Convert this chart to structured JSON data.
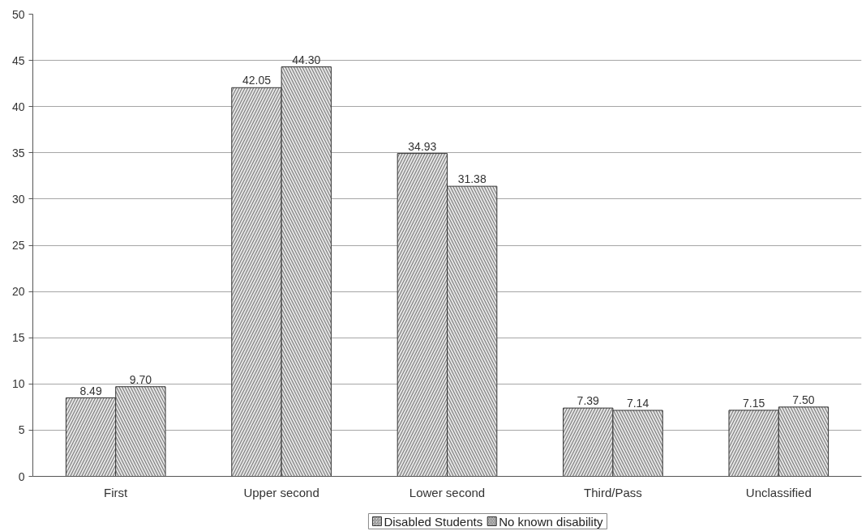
{
  "chart_data": {
    "type": "bar",
    "categories": [
      "First",
      "Upper second",
      "Lower second",
      "Third/Pass",
      "Unclassified"
    ],
    "series": [
      {
        "name": "Disabled Students",
        "color": "#e6e6e6",
        "values": [
          8.49,
          42.05,
          34.93,
          7.39,
          7.15
        ],
        "value_labels": [
          "8.49",
          "42.05",
          "34.93",
          "7.39",
          "7.15"
        ]
      },
      {
        "name": "No known disability",
        "color": "#e6e6e6",
        "values": [
          9.7,
          44.3,
          31.38,
          7.14,
          7.5
        ],
        "value_labels": [
          "9.70",
          "44.30",
          "31.38",
          "7.14",
          "7.50"
        ]
      }
    ],
    "ylim": [
      0,
      50
    ],
    "yticks": [
      0,
      5,
      10,
      15,
      20,
      25,
      30,
      35,
      40,
      45,
      50
    ],
    "grid": "y",
    "legend": "bottom"
  }
}
